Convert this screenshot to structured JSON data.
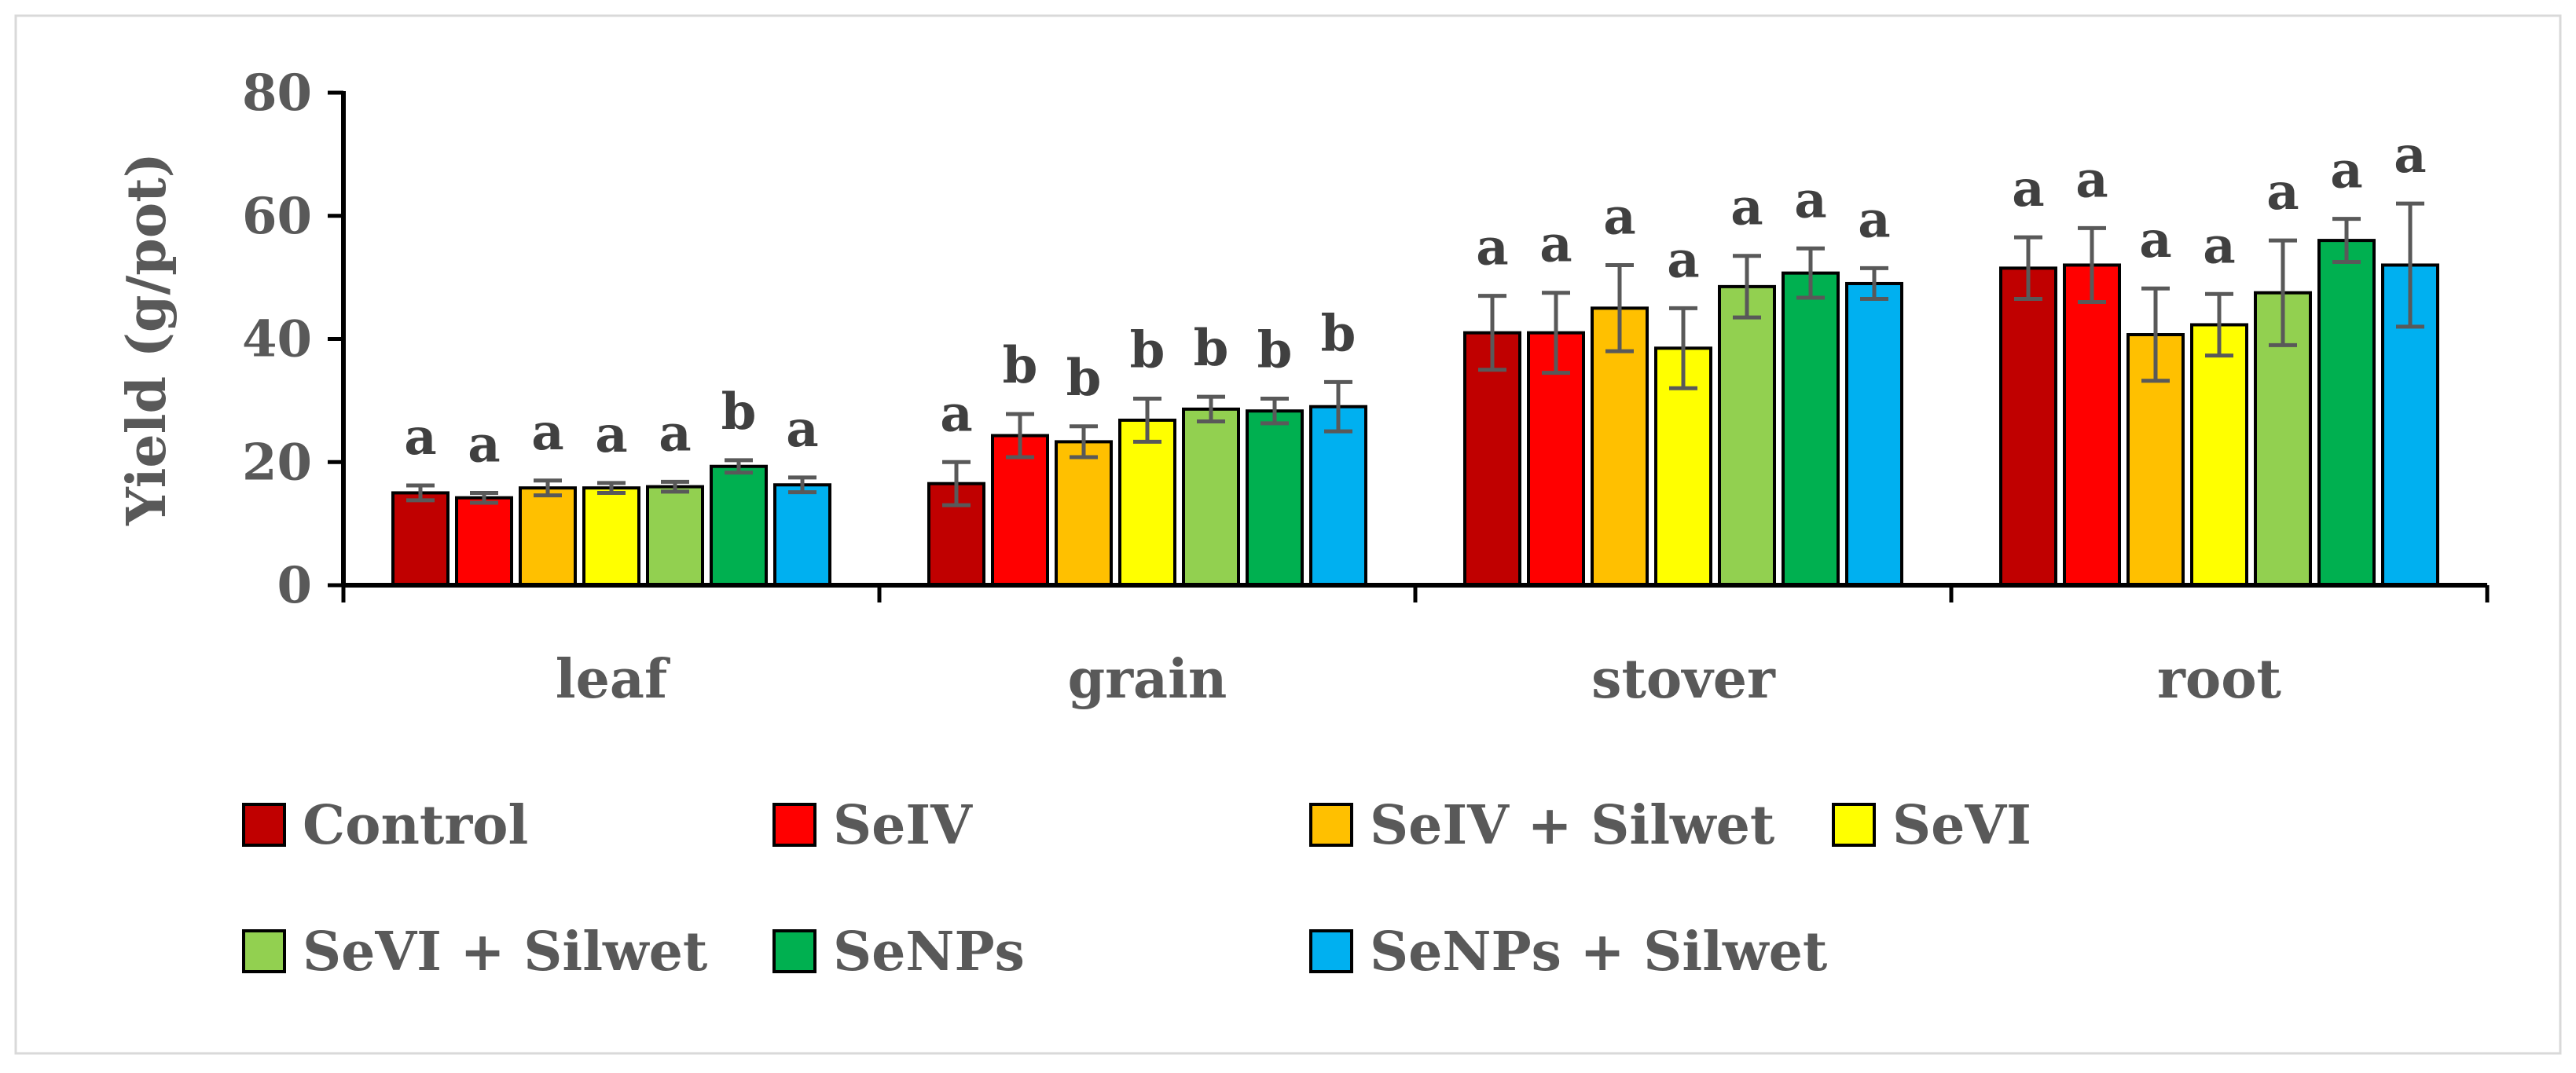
{
  "chart_data": {
    "type": "bar",
    "title": "",
    "xlabel": "",
    "ylabel": "Yield (g/pot)",
    "ylim": [
      0,
      80
    ],
    "yticks": [
      0,
      20,
      40,
      60,
      80
    ],
    "categories": [
      "leaf",
      "grain",
      "stover",
      "root"
    ],
    "legend_position": "bottom",
    "series": [
      {
        "name": "Control",
        "color": "#C00000",
        "values": [
          15,
          16.5,
          41,
          51.5
        ],
        "errors": [
          1.2,
          3.5,
          6,
          5
        ],
        "letters": [
          "a",
          "a",
          "a",
          "a"
        ]
      },
      {
        "name": "SeIV",
        "color": "#FF0000",
        "values": [
          14.2,
          24.3,
          41,
          52
        ],
        "errors": [
          0.8,
          3.5,
          6.5,
          6
        ],
        "letters": [
          "a",
          "b",
          "a",
          "a"
        ]
      },
      {
        "name": "SeIV + Silwet",
        "color": "#FFC000",
        "values": [
          15.8,
          23.3,
          45,
          40.7
        ],
        "errors": [
          1.2,
          2.5,
          7,
          7.5
        ],
        "letters": [
          "a",
          "b",
          "a",
          "a"
        ]
      },
      {
        "name": "SeVI",
        "color": "#FFFF00",
        "values": [
          15.8,
          26.8,
          38.5,
          42.3
        ],
        "errors": [
          0.8,
          3.5,
          6.5,
          5
        ],
        "letters": [
          "a",
          "b",
          "a",
          "a"
        ]
      },
      {
        "name": "SeVI + Silwet",
        "color": "#92D050",
        "values": [
          16,
          28.6,
          48.5,
          47.5
        ],
        "errors": [
          0.8,
          2,
          5,
          8.5
        ],
        "letters": [
          "a",
          "b",
          "a",
          "a"
        ]
      },
      {
        "name": "SeNPs",
        "color": "#00B050",
        "values": [
          19.3,
          28.3,
          50.7,
          56
        ],
        "errors": [
          1,
          2,
          4,
          3.5
        ],
        "letters": [
          "b",
          "b",
          "a",
          "a"
        ]
      },
      {
        "name": "SeNPs + Silwet",
        "color": "#00B0F0",
        "values": [
          16.3,
          29,
          49,
          52
        ],
        "errors": [
          1.2,
          4,
          2.5,
          10
        ],
        "letters": [
          "a",
          "b",
          "a",
          "a"
        ]
      }
    ]
  }
}
